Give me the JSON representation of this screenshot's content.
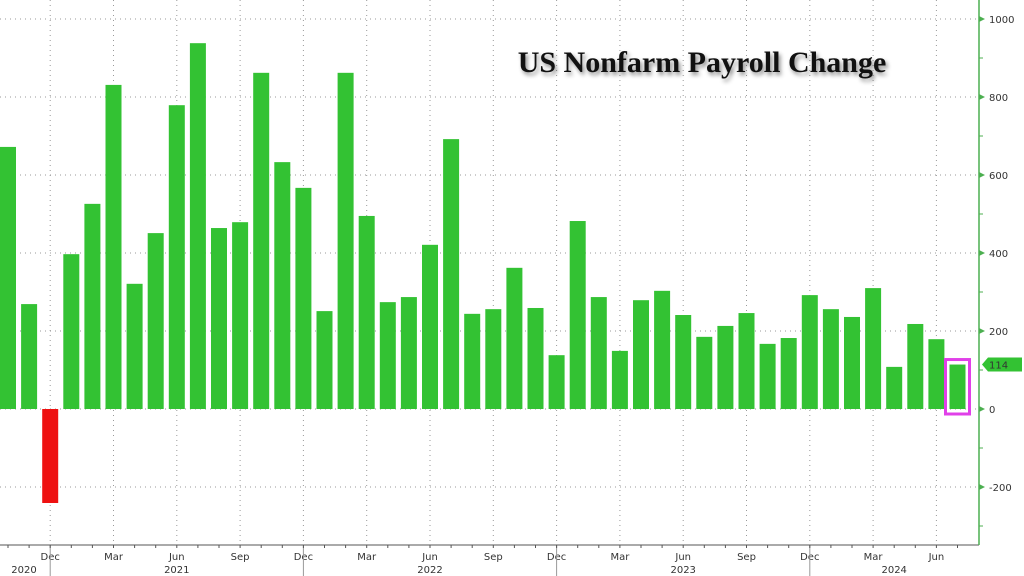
{
  "chart_data": {
    "type": "bar",
    "title": "US Nonfarm Payroll Change",
    "xlabel": "",
    "ylabel": "",
    "ylim": [
      -350,
      1050
    ],
    "yticks": [
      -200,
      0,
      200,
      400,
      600,
      800,
      1000
    ],
    "grid": true,
    "categories": [
      "Oct 2020",
      "Nov 2020",
      "Dec 2020",
      "Jan 2021",
      "Feb 2021",
      "Mar 2021",
      "Apr 2021",
      "May 2021",
      "Jun 2021",
      "Jul 2021",
      "Aug 2021",
      "Sep 2021",
      "Oct 2021",
      "Nov 2021",
      "Dec 2021",
      "Jan 2022",
      "Feb 2022",
      "Mar 2022",
      "Apr 2022",
      "May 2022",
      "Jun 2022",
      "Jul 2022",
      "Aug 2022",
      "Sep 2022",
      "Oct 2022",
      "Nov 2022",
      "Dec 2022",
      "Jan 2023",
      "Feb 2023",
      "Mar 2023",
      "Apr 2023",
      "May 2023",
      "Jun 2023",
      "Jul 2023",
      "Aug 2023",
      "Sep 2023",
      "Oct 2023",
      "Nov 2023",
      "Dec 2023",
      "Jan 2024",
      "Feb 2024",
      "Mar 2024",
      "Apr 2024",
      "May 2024",
      "Jun 2024",
      "Jul 2024"
    ],
    "values": [
      672,
      269,
      -241,
      397,
      526,
      831,
      321,
      451,
      779,
      938,
      464,
      479,
      862,
      633,
      567,
      251,
      862,
      495,
      274,
      287,
      421,
      692,
      244,
      256,
      362,
      259,
      138,
      482,
      287,
      149,
      279,
      303,
      241,
      185,
      213,
      246,
      167,
      182,
      292,
      256,
      236,
      310,
      108,
      218,
      179,
      114
    ],
    "month_ticks": [
      {
        "i": 2,
        "label": "Dec"
      },
      {
        "i": 5,
        "label": "Mar"
      },
      {
        "i": 8,
        "label": "Jun"
      },
      {
        "i": 11,
        "label": "Sep"
      },
      {
        "i": 14,
        "label": "Dec"
      },
      {
        "i": 17,
        "label": "Mar"
      },
      {
        "i": 20,
        "label": "Jun"
      },
      {
        "i": 23,
        "label": "Sep"
      },
      {
        "i": 26,
        "label": "Dec"
      },
      {
        "i": 29,
        "label": "Mar"
      },
      {
        "i": 32,
        "label": "Jun"
      },
      {
        "i": 35,
        "label": "Sep"
      },
      {
        "i": 38,
        "label": "Dec"
      },
      {
        "i": 41,
        "label": "Mar"
      },
      {
        "i": 44,
        "label": "Jun"
      }
    ],
    "year_labels": [
      {
        "i": 0.3,
        "label": "2020"
      },
      {
        "i": 8,
        "label": "2021"
      },
      {
        "i": 20,
        "label": "2022"
      },
      {
        "i": 32,
        "label": "2023"
      },
      {
        "i": 42,
        "label": "2024"
      }
    ],
    "last_value_label": "114",
    "colors": {
      "positive": "#33c233",
      "negative": "#ee1111",
      "highlight": "#e040e8",
      "axis": "#4caf50"
    }
  }
}
